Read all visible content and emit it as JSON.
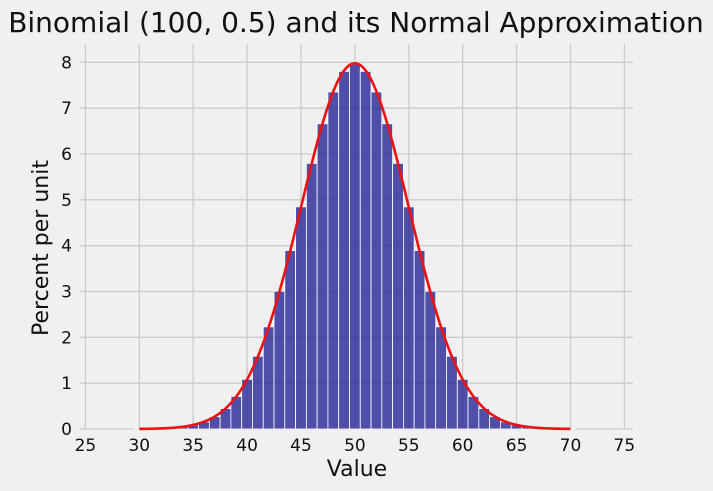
{
  "chart_data": {
    "type": "bar",
    "title": "Binomial (100, 0.5) and its Normal Approximation",
    "xlabel": "Value",
    "ylabel": "Percent per unit",
    "xlim": [
      24.5,
      75.8
    ],
    "ylim": [
      0,
      8.4
    ],
    "xticks": [
      25,
      30,
      35,
      40,
      45,
      50,
      55,
      60,
      65,
      70,
      75
    ],
    "yticks": [
      0,
      1,
      2,
      3,
      4,
      5,
      6,
      7,
      8
    ],
    "grid": true,
    "bar_color": "#2b2b9a",
    "curve_color": "#ee1111",
    "series": [
      {
        "kind": "histogram",
        "bin_width": 1,
        "x": [
          30,
          31,
          32,
          33,
          34,
          35,
          36,
          37,
          38,
          39,
          40,
          41,
          42,
          43,
          44,
          45,
          46,
          47,
          48,
          49,
          50,
          51,
          52,
          53,
          54,
          55,
          56,
          57,
          58,
          59,
          60,
          61,
          62,
          63,
          64,
          65,
          66,
          67,
          68,
          69,
          70
        ],
        "values": [
          0.002,
          0.005,
          0.011,
          0.023,
          0.046,
          0.086,
          0.156,
          0.27,
          0.447,
          0.711,
          1.084,
          1.587,
          2.229,
          3.007,
          3.895,
          4.847,
          5.796,
          6.659,
          7.353,
          7.803,
          7.959,
          7.803,
          7.353,
          6.659,
          5.796,
          4.847,
          3.895,
          3.007,
          2.229,
          1.587,
          1.084,
          0.711,
          0.447,
          0.27,
          0.156,
          0.086,
          0.046,
          0.023,
          0.011,
          0.005,
          0.002
        ]
      },
      {
        "kind": "normal-curve",
        "mean": 50,
        "sd": 5,
        "range": [
          30,
          70
        ]
      }
    ]
  }
}
